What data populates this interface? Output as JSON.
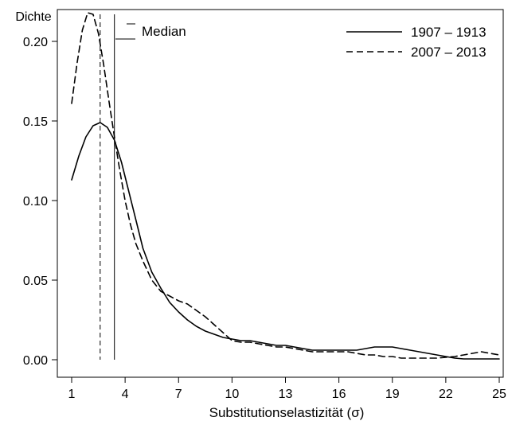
{
  "chart_data": {
    "type": "line",
    "title": "",
    "ylabel": "Dichte",
    "xlabel": "Substitutionselastizität (σ)",
    "xlim": [
      1,
      25
    ],
    "ylim": [
      0,
      0.22
    ],
    "x_ticks": [
      1,
      4,
      7,
      10,
      13,
      16,
      19,
      22,
      25
    ],
    "y_ticks": [
      0.0,
      0.05,
      0.1,
      0.15,
      0.2
    ],
    "x_tick_labels": [
      "1",
      "4",
      "7",
      "10",
      "13",
      "16",
      "19",
      "22",
      "25"
    ],
    "y_tick_labels": [
      "0.00",
      "0.05",
      "0.10",
      "0.15",
      "0.20"
    ],
    "grid": false,
    "legend_position": "top-right",
    "median_label": "Median",
    "series": [
      {
        "name": "1907 – 1913",
        "line_style": "solid",
        "color": "#000000",
        "median": 3.4,
        "x": [
          1,
          1.4,
          1.8,
          2.2,
          2.6,
          3.0,
          3.4,
          3.8,
          4.2,
          4.6,
          5.0,
          5.5,
          6.0,
          6.5,
          7.0,
          7.5,
          8.0,
          8.5,
          9.0,
          9.5,
          10,
          10.5,
          11,
          11.5,
          12,
          12.5,
          13,
          13.5,
          14,
          14.5,
          15,
          15.5,
          16,
          16.5,
          17,
          17.5,
          18,
          18.5,
          19,
          19.5,
          20,
          20.5,
          21,
          21.5,
          22,
          22.5,
          23,
          24,
          25
        ],
        "y": [
          0.113,
          0.128,
          0.14,
          0.147,
          0.149,
          0.146,
          0.138,
          0.124,
          0.106,
          0.088,
          0.07,
          0.055,
          0.045,
          0.036,
          0.03,
          0.025,
          0.021,
          0.018,
          0.016,
          0.014,
          0.013,
          0.012,
          0.012,
          0.011,
          0.01,
          0.009,
          0.009,
          0.008,
          0.007,
          0.006,
          0.006,
          0.006,
          0.006,
          0.006,
          0.006,
          0.007,
          0.008,
          0.008,
          0.008,
          0.007,
          0.006,
          0.005,
          0.004,
          0.003,
          0.002,
          0.001,
          0.0005,
          0.0005,
          0.0005
        ]
      },
      {
        "name": "2007 – 2013",
        "line_style": "dashed",
        "color": "#000000",
        "median": 2.6,
        "x": [
          1,
          1.3,
          1.6,
          1.9,
          2.2,
          2.5,
          2.8,
          3.1,
          3.4,
          3.7,
          4.0,
          4.3,
          4.6,
          5.0,
          5.5,
          6.0,
          6.5,
          7.0,
          7.5,
          8.0,
          8.5,
          9.0,
          9.5,
          10,
          10.5,
          11,
          11.5,
          12,
          12.5,
          13,
          13.5,
          14,
          14.5,
          15,
          15.5,
          16,
          16.5,
          17,
          17.5,
          18,
          18.5,
          19,
          19.5,
          20,
          20.5,
          21,
          21.5,
          22,
          22.5,
          23,
          23.5,
          24,
          24.5,
          25
        ],
        "y": [
          0.161,
          0.186,
          0.207,
          0.218,
          0.217,
          0.205,
          0.185,
          0.162,
          0.14,
          0.119,
          0.1,
          0.085,
          0.073,
          0.062,
          0.05,
          0.043,
          0.04,
          0.037,
          0.035,
          0.031,
          0.027,
          0.022,
          0.017,
          0.012,
          0.011,
          0.011,
          0.01,
          0.009,
          0.008,
          0.008,
          0.007,
          0.006,
          0.005,
          0.005,
          0.005,
          0.005,
          0.005,
          0.004,
          0.003,
          0.003,
          0.002,
          0.002,
          0.001,
          0.001,
          0.001,
          0.001,
          0.001,
          0.0015,
          0.002,
          0.003,
          0.004,
          0.005,
          0.004,
          0.003
        ]
      }
    ]
  }
}
